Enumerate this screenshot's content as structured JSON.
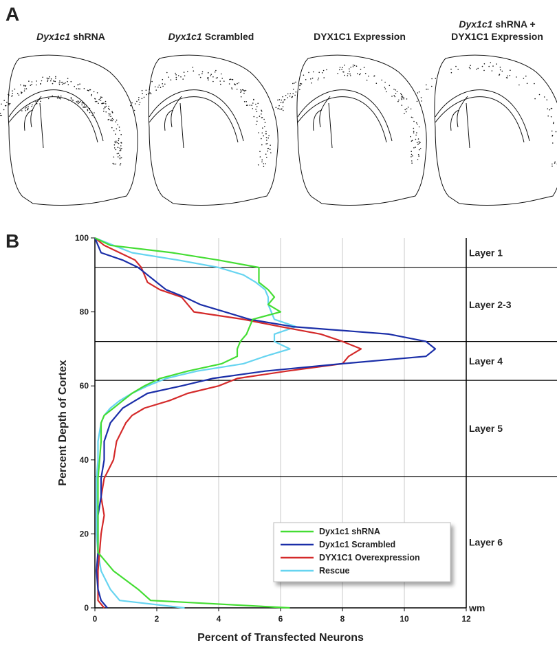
{
  "panel_a": {
    "label": "A",
    "panels": [
      {
        "italic": "Dyx1c1",
        "text": "shRNA"
      },
      {
        "italic": "Dyx1c1",
        "text": "Scrambled"
      },
      {
        "text": "DYX1C1 Expression"
      },
      {
        "italic": "Dyx1c1",
        "text": "shRNA +",
        "line2": "DYX1C1 Expression"
      }
    ]
  },
  "chart_data": {
    "type": "line",
    "panel_label": "B",
    "x_label": "Percent of Transfected Neurons",
    "y_label": "Percent Depth of Cortex",
    "xlim": [
      0,
      12
    ],
    "xticks": [
      0,
      2,
      4,
      6,
      8,
      10,
      12
    ],
    "ylim": [
      0,
      100
    ],
    "yticks": [
      0,
      20,
      40,
      60,
      80,
      100
    ],
    "grid": true,
    "layer_boundaries": [
      92,
      72,
      61.5,
      35.5
    ],
    "layers": [
      "Layer 1",
      "Layer 2-3",
      "Layer 4",
      "Layer 5",
      "Layer 6",
      "wm"
    ],
    "legend": "lower right",
    "depth": [
      100,
      98,
      96,
      94,
      92,
      90,
      88,
      86,
      84,
      82,
      80,
      78,
      76,
      74,
      72,
      70,
      68,
      66,
      64,
      62,
      60,
      58,
      56,
      54,
      52,
      50,
      45,
      40,
      35,
      30,
      25,
      20,
      15,
      10,
      5,
      2,
      0
    ],
    "series": [
      {
        "name": "Dyx1c1 shRNA",
        "color": "#44dd33",
        "values": [
          0,
          0.5,
          2.5,
          4,
          5.3,
          5.3,
          5.3,
          5.6,
          5.8,
          5.6,
          6.0,
          5.1,
          5.0,
          4.9,
          4.7,
          4.6,
          4.6,
          4.1,
          3.0,
          2.1,
          1.6,
          1.2,
          0.9,
          0.6,
          0.3,
          0.2,
          0.2,
          0.15,
          0.1,
          0.1,
          0.1,
          0.1,
          0.1,
          0.6,
          1.4,
          1.8,
          6.3
        ]
      },
      {
        "name": "Dyx1c1 Scrambled",
        "color": "#1a2ea8",
        "values": [
          0,
          0.1,
          0.2,
          0.9,
          1.4,
          1.7,
          2.0,
          2.3,
          2.9,
          3.4,
          4.2,
          5.0,
          6.4,
          9.5,
          10.7,
          11.0,
          10.7,
          8.0,
          5.5,
          3.8,
          2.8,
          1.7,
          1.3,
          0.9,
          0.7,
          0.5,
          0.3,
          0.3,
          0.2,
          0.2,
          0.1,
          0.1,
          0.1,
          0.05,
          0.1,
          0.2,
          0.4
        ]
      },
      {
        "name": "DYX1C1 Overexpression",
        "color": "#d42a2a",
        "values": [
          0,
          0.3,
          0.8,
          1.3,
          1.5,
          1.6,
          1.7,
          2.1,
          2.8,
          3.0,
          3.2,
          4.8,
          6.0,
          7.3,
          8.0,
          8.6,
          8.2,
          8.0,
          6.2,
          4.6,
          4.0,
          3.0,
          2.4,
          1.6,
          1.2,
          1.0,
          0.7,
          0.6,
          0.3,
          0.2,
          0.3,
          0.2,
          0.15,
          0.1,
          0.1,
          0.1,
          0.3
        ]
      },
      {
        "name": "Rescue",
        "color": "#66d4f0",
        "values": [
          0,
          0.6,
          1.2,
          2.7,
          4.0,
          4.8,
          5.2,
          5.5,
          5.6,
          5.6,
          5.7,
          5.8,
          6.5,
          5.8,
          5.8,
          6.3,
          5.5,
          4.8,
          3.3,
          2.3,
          1.7,
          1.2,
          0.8,
          0.5,
          0.3,
          0.2,
          0.1,
          0.1,
          0.05,
          0.05,
          0.05,
          0.05,
          0.1,
          0.2,
          0.5,
          0.8,
          2.9
        ]
      }
    ]
  }
}
